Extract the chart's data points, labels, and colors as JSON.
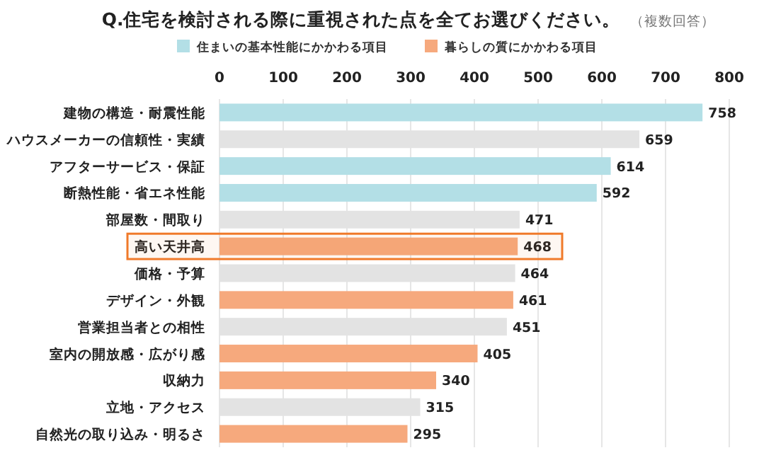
{
  "chart_data": {
    "type": "bar",
    "orientation": "horizontal",
    "title": "Q.住宅を検討される際に重視された点を全てお選びください。",
    "subtitle": "（複数回答）",
    "categories": [
      "建物の構造・耐震性能",
      "ハウスメーカーの信頼性・実績",
      "アフターサービス・保証",
      "断熱性能・省エネ性能",
      "部屋数・間取り",
      "高い天井高",
      "価格・予算",
      "デザイン・外観",
      "営業担当者との相性",
      "室内の開放感・広がり感",
      "収納力",
      "立地・アクセス",
      "自然光の取り込み・明るさ"
    ],
    "series": [
      {
        "name": "住まいの基本性能にかかわる項目",
        "color": "#b3dfe6",
        "values": [
          758,
          null,
          614,
          592,
          null,
          null,
          null,
          null,
          null,
          null,
          null,
          null,
          null
        ]
      },
      {
        "name": "暮らしの質にかかわる項目",
        "color": "#f6a97d",
        "values": [
          null,
          null,
          null,
          null,
          null,
          468,
          null,
          461,
          null,
          405,
          340,
          null,
          295
        ]
      },
      {
        "color": "#e3e3e3",
        "values": [
          null,
          659,
          null,
          null,
          471,
          null,
          464,
          null,
          451,
          null,
          null,
          315,
          null
        ]
      }
    ],
    "xlim": [
      0,
      800
    ],
    "xticks": [
      0,
      100,
      200,
      300,
      400,
      500,
      600,
      700,
      800
    ],
    "grid": "x",
    "legend": "top",
    "data_labels": true,
    "bands": [
      {
        "axis": "y",
        "from": "高い天井高",
        "to": "高い天井高",
        "color": "#f07a2a"
      }
    ]
  }
}
